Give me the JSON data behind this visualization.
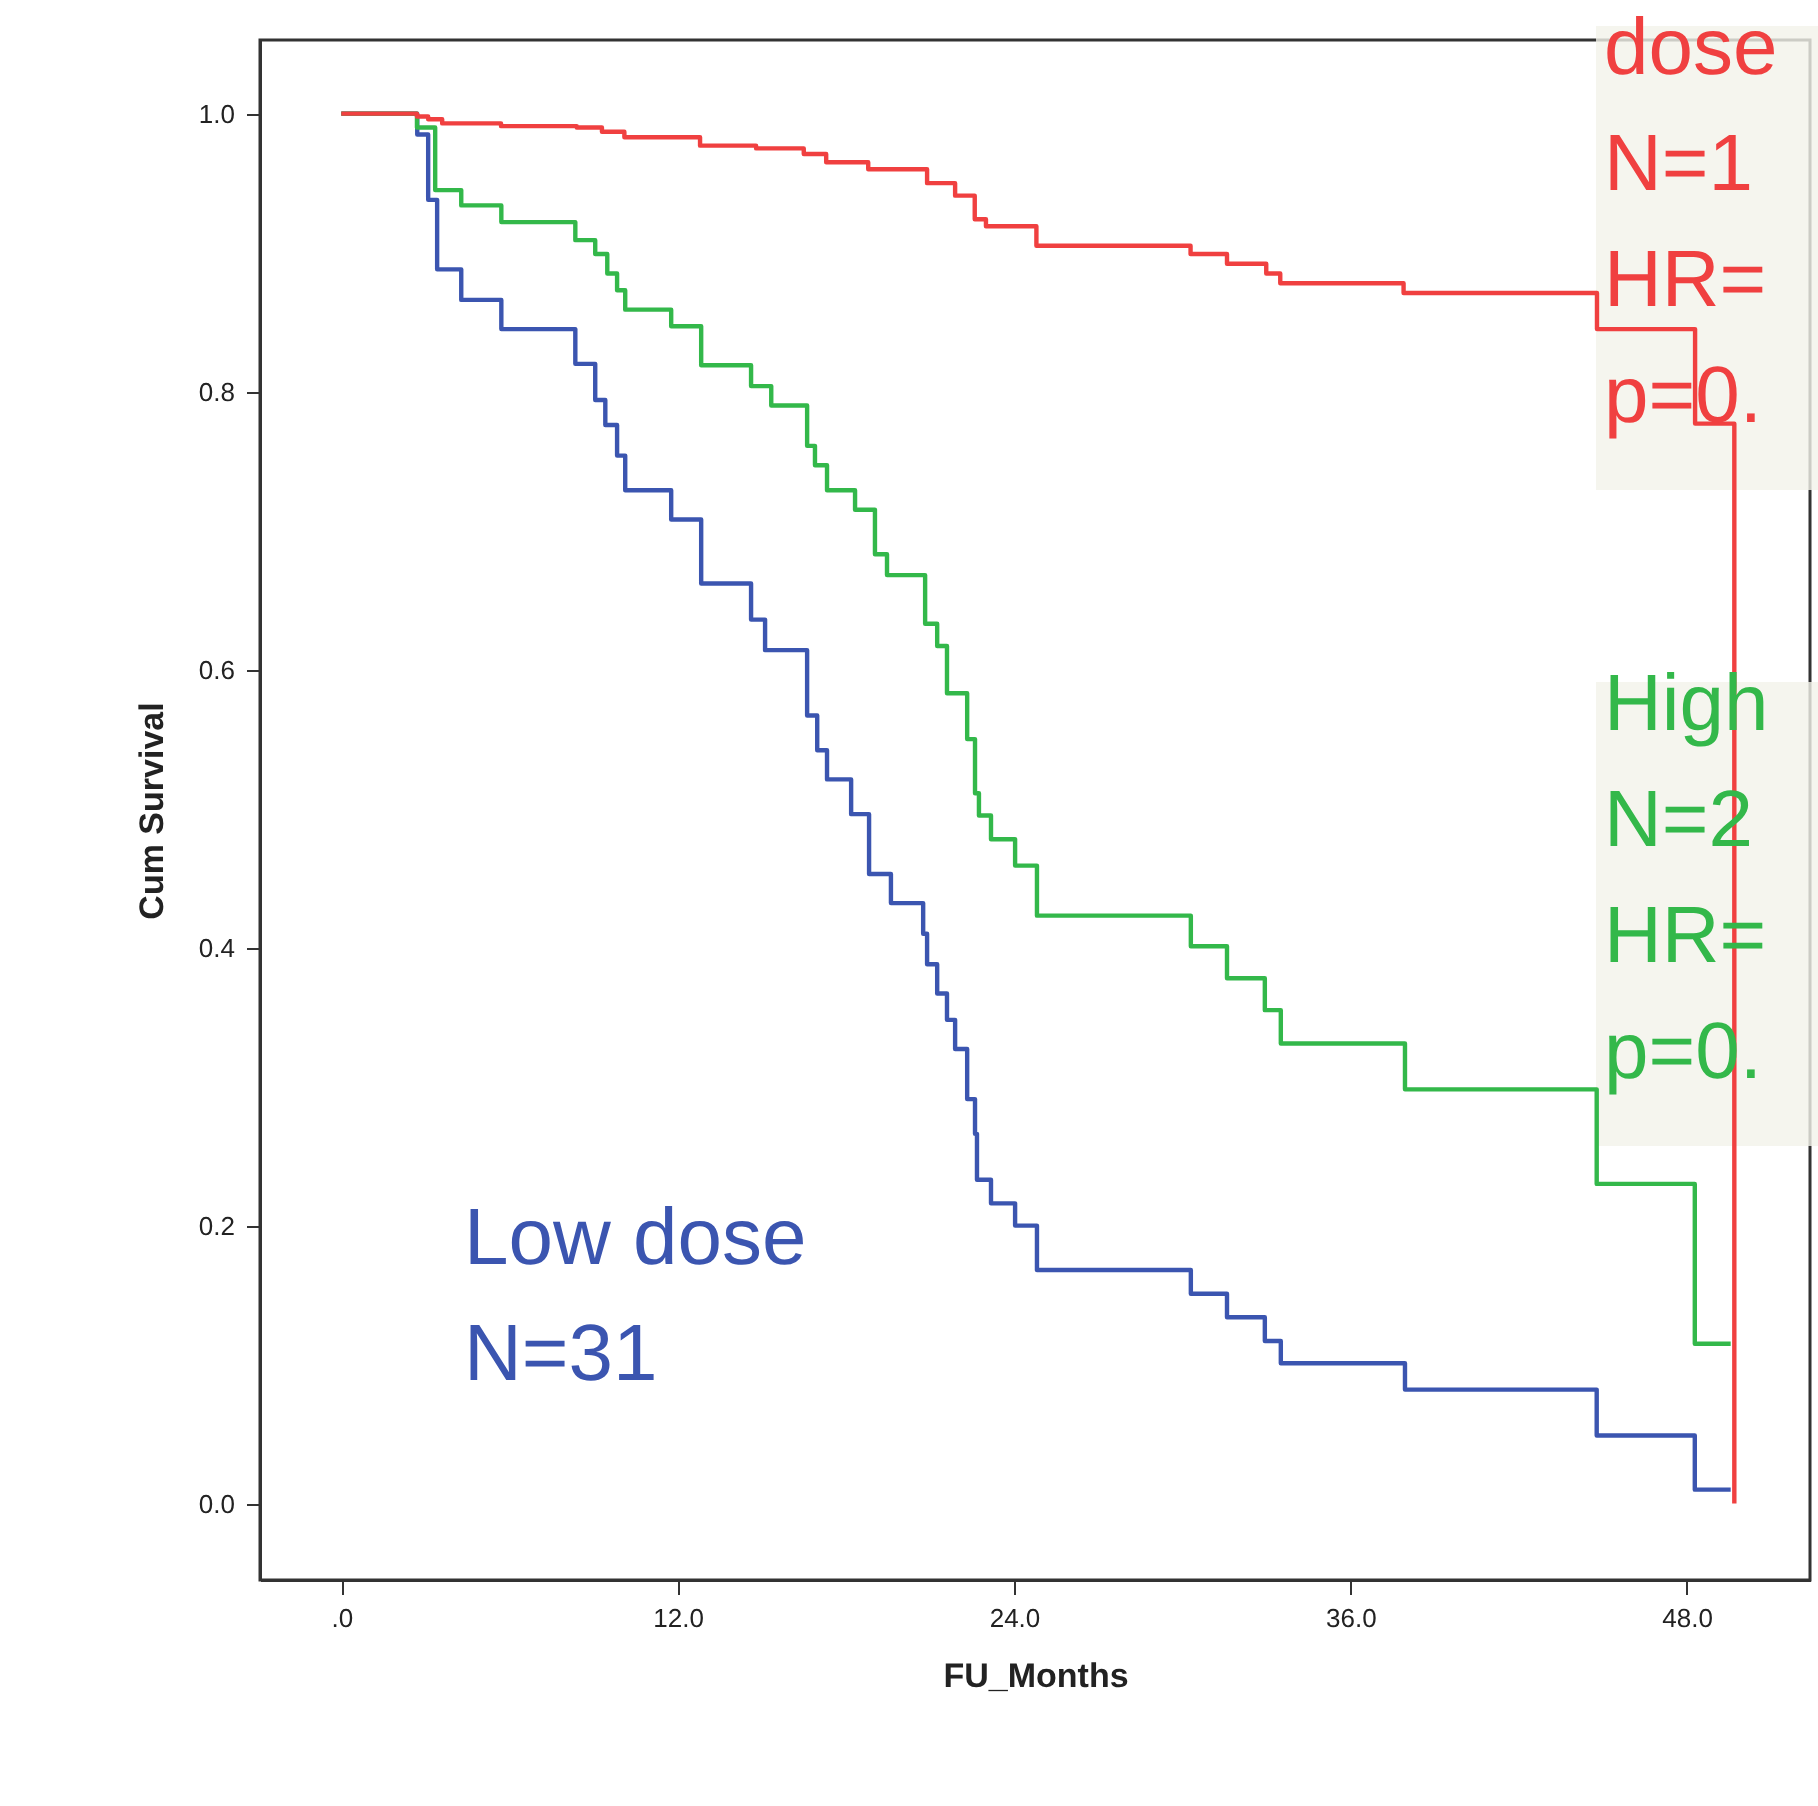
{
  "chart_data": {
    "type": "step",
    "xlabel": "FU_Months",
    "ylabel": "Cum Survival",
    "xlim": [
      -2.9,
      52.4
    ],
    "ylim": [
      -0.055,
      1.053
    ],
    "xticks": [
      {
        "value": 0,
        "label": ".0"
      },
      {
        "value": 12,
        "label": "12.0"
      },
      {
        "value": 24,
        "label": "24.0"
      },
      {
        "value": 36,
        "label": "36.0"
      },
      {
        "value": 48,
        "label": "48.0"
      }
    ],
    "yticks": [
      {
        "value": 0,
        "label": "0.0"
      },
      {
        "value": 0.2,
        "label": "0.2"
      },
      {
        "value": 0.4,
        "label": "0.4"
      },
      {
        "value": 0.6,
        "label": "0.6"
      },
      {
        "value": 0.8,
        "label": "0.8"
      },
      {
        "value": 1,
        "label": "1.0"
      }
    ],
    "grid": false,
    "line_style": "solid",
    "series": [
      {
        "color": "#f04040",
        "x": [
          0,
          2.7,
          3.1,
          3.6,
          5.7,
          8.4,
          9.3,
          10.1,
          12.8,
          14.8,
          16.5,
          17.3,
          18.8,
          20.9,
          21.9,
          22.6,
          23.0,
          24.8,
          30.3,
          31.6,
          33.0,
          33.5,
          37.9,
          44.8,
          48.3,
          49.7
        ],
        "values": [
          1.0,
          0.998,
          0.996,
          0.993,
          0.991,
          0.99,
          0.987,
          0.983,
          0.977,
          0.975,
          0.971,
          0.965,
          0.96,
          0.95,
          0.941,
          0.924,
          0.919,
          0.905,
          0.899,
          0.892,
          0.885,
          0.878,
          0.871,
          0.845,
          0.777,
          0.0
        ]
      },
      {
        "color": "#33b84a",
        "x": [
          0,
          2.7,
          3.35,
          4.28,
          5.71,
          8.35,
          9.06,
          9.49,
          9.84,
          10.13,
          11.77,
          12.84,
          14.62,
          15.34,
          16.62,
          16.9,
          17.33,
          18.33,
          19.04,
          19.47,
          20.83,
          21.26,
          21.61,
          22.33,
          22.61,
          22.75,
          23.18,
          24.04,
          24.82,
          30.31,
          31.6,
          32.95,
          33.52,
          37.95,
          44.79,
          48.29,
          49.57
        ],
        "values": [
          1.0,
          0.99,
          0.945,
          0.934,
          0.922,
          0.909,
          0.899,
          0.885,
          0.873,
          0.859,
          0.847,
          0.819,
          0.804,
          0.79,
          0.761,
          0.747,
          0.729,
          0.715,
          0.683,
          0.668,
          0.633,
          0.617,
          0.583,
          0.55,
          0.511,
          0.495,
          0.478,
          0.459,
          0.423,
          0.401,
          0.378,
          0.355,
          0.331,
          0.298,
          0.23,
          0.115,
          0.115
        ]
      },
      {
        "color": "#3b55b0",
        "x": [
          0,
          2.71,
          3.1,
          3.42,
          4.28,
          5.71,
          8.35,
          9.06,
          9.42,
          9.84,
          10.13,
          11.77,
          12.84,
          14.62,
          15.12,
          16.62,
          16.98,
          17.33,
          18.19,
          18.83,
          19.61,
          20.76,
          20.9,
          21.26,
          21.61,
          21.9,
          22.33,
          22.61,
          22.68,
          23.18,
          24.04,
          24.82,
          30.31,
          31.6,
          32.95,
          33.52,
          37.95,
          44.79,
          48.29,
          49.57
        ],
        "values": [
          1.0,
          0.985,
          0.938,
          0.888,
          0.866,
          0.845,
          0.82,
          0.794,
          0.776,
          0.754,
          0.729,
          0.708,
          0.662,
          0.636,
          0.614,
          0.567,
          0.542,
          0.521,
          0.496,
          0.453,
          0.432,
          0.41,
          0.388,
          0.367,
          0.348,
          0.327,
          0.291,
          0.266,
          0.233,
          0.216,
          0.2,
          0.168,
          0.151,
          0.134,
          0.117,
          0.101,
          0.082,
          0.049,
          0.01,
          0.01
        ]
      }
    ],
    "annotations": [
      "dose\nN=1\nHR=\np=0.",
      "High\nN=2\nHR=\np=0.",
      "Low dose\nN=31"
    ]
  }
}
